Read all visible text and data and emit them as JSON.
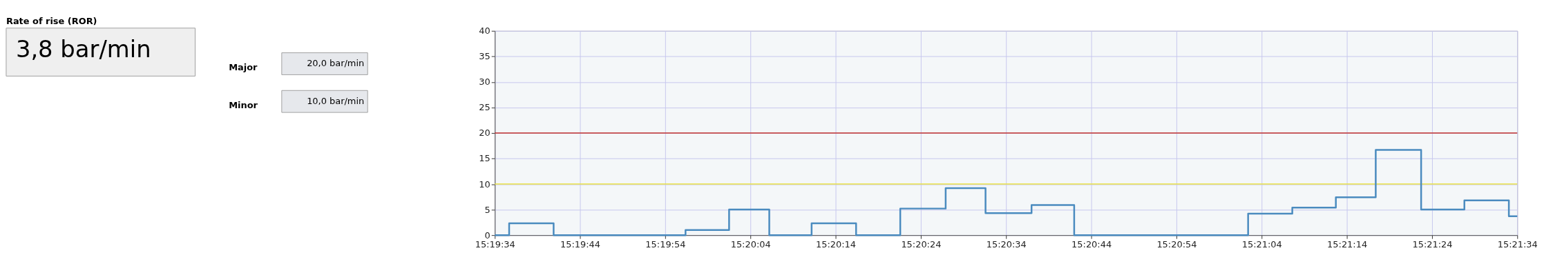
{
  "chart_data": {
    "type": "step",
    "title": "Rate of rise (ROR)",
    "annotations": [
      "3,8 bar/min",
      "Major",
      "20,0 bar/min",
      "Minor",
      "10,0 bar/min"
    ],
    "x": [
      15.326111,
      15.32658,
      15.32803,
      15.33233,
      15.33375,
      15.33506,
      15.33644,
      15.33789,
      15.33933,
      15.34081,
      15.34211,
      15.34361,
      15.345,
      15.35067,
      15.35211,
      15.35353,
      15.35483,
      15.35631,
      15.35772,
      15.35917,
      15.359444
    ],
    "series": [
      {
        "color": "#4a8bbf",
        "values": [
          0,
          2.3,
          0,
          1.0,
          5.0,
          0,
          2.3,
          0,
          5.2,
          9.2,
          4.3,
          5.9,
          0,
          4.2,
          5.4,
          7.4,
          16.7,
          5.0,
          6.8,
          3.7,
          3.7
        ]
      }
    ],
    "xlim": [
      15.326111,
      15.359444
    ],
    "xticks": [
      {
        "value": 15.326111,
        "label": "15:19:34"
      },
      {
        "value": 15.328889,
        "label": "15:19:44"
      },
      {
        "value": 15.331667,
        "label": "15:19:54"
      },
      {
        "value": 15.334444,
        "label": "15:20:04"
      },
      {
        "value": 15.337222,
        "label": "15:20:14"
      },
      {
        "value": 15.34,
        "label": "15:20:24"
      },
      {
        "value": 15.342778,
        "label": "15:20:34"
      },
      {
        "value": 15.345556,
        "label": "15:20:44"
      },
      {
        "value": 15.348333,
        "label": "15:20:54"
      },
      {
        "value": 15.351111,
        "label": "15:21:04"
      },
      {
        "value": 15.353889,
        "label": "15:21:14"
      },
      {
        "value": 15.356667,
        "label": "15:21:24"
      },
      {
        "value": 15.359444,
        "label": "15:21:34"
      }
    ],
    "ylim": [
      0,
      40
    ],
    "yticks": [
      0,
      5,
      10,
      15,
      20,
      25,
      30,
      35,
      40
    ],
    "ref_lines": [
      {
        "axis": "y",
        "value": 20,
        "color": "#c0302e"
      },
      {
        "axis": "y",
        "value": 10,
        "color": "#e8e040"
      }
    ],
    "grid": true,
    "line_style": "solid",
    "marker": "none"
  }
}
